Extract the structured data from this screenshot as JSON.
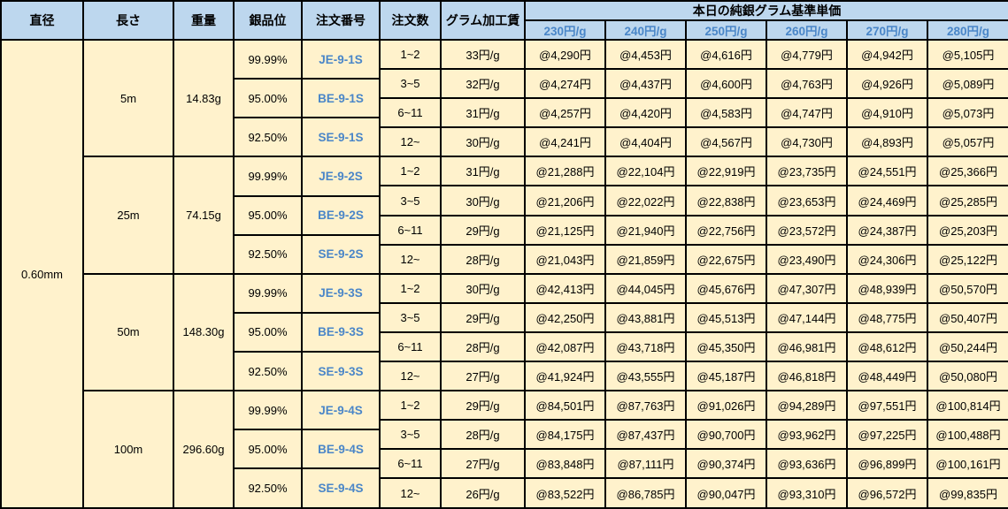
{
  "colors": {
    "header_bg": "#BDD7EE",
    "body_bg": "#FFF2CC",
    "accent_blue_text": "#4A86C8",
    "border": "#000000"
  },
  "table": {
    "headers": {
      "diameter": "直径",
      "length": "長さ",
      "weight": "重量",
      "purity": "銀品位",
      "order_number": "注文番号",
      "order_qty": "注文数",
      "gram_fee": "グラム加工賃",
      "price_group": "本日の純銀グラム基準単価",
      "price_columns": [
        "230円/g",
        "240円/g",
        "250円/g",
        "260円/g",
        "270円/g",
        "280円/g"
      ]
    },
    "diameter": "0.60mm",
    "blocks": [
      {
        "length": "5m",
        "weight": "14.83g",
        "purities": [
          {
            "purity": "99.99%",
            "order_number": "JE-9-1S"
          },
          {
            "purity": "95.00%",
            "order_number": "BE-9-1S"
          },
          {
            "purity": "92.50%",
            "order_number": "SE-9-1S"
          }
        ],
        "rows": [
          {
            "qty": "1~2",
            "fee": "33円/g",
            "prices": [
              "@4,290円",
              "@4,453円",
              "@4,616円",
              "@4,779円",
              "@4,942円",
              "@5,105円"
            ]
          },
          {
            "qty": "3~5",
            "fee": "32円/g",
            "prices": [
              "@4,274円",
              "@4,437円",
              "@4,600円",
              "@4,763円",
              "@4,926円",
              "@5,089円"
            ]
          },
          {
            "qty": "6~11",
            "fee": "31円/g",
            "prices": [
              "@4,257円",
              "@4,420円",
              "@4,583円",
              "@4,747円",
              "@4,910円",
              "@5,073円"
            ]
          },
          {
            "qty": "12~",
            "fee": "30円/g",
            "prices": [
              "@4,241円",
              "@4,404円",
              "@4,567円",
              "@4,730円",
              "@4,893円",
              "@5,057円"
            ]
          }
        ]
      },
      {
        "length": "25m",
        "weight": "74.15g",
        "purities": [
          {
            "purity": "99.99%",
            "order_number": "JE-9-2S"
          },
          {
            "purity": "95.00%",
            "order_number": "BE-9-2S"
          },
          {
            "purity": "92.50%",
            "order_number": "SE-9-2S"
          }
        ],
        "rows": [
          {
            "qty": "1~2",
            "fee": "31円/g",
            "prices": [
              "@21,288円",
              "@22,104円",
              "@22,919円",
              "@23,735円",
              "@24,551円",
              "@25,366円"
            ]
          },
          {
            "qty": "3~5",
            "fee": "30円/g",
            "prices": [
              "@21,206円",
              "@22,022円",
              "@22,838円",
              "@23,653円",
              "@24,469円",
              "@25,285円"
            ]
          },
          {
            "qty": "6~11",
            "fee": "29円/g",
            "prices": [
              "@21,125円",
              "@21,940円",
              "@22,756円",
              "@23,572円",
              "@24,387円",
              "@25,203円"
            ]
          },
          {
            "qty": "12~",
            "fee": "28円/g",
            "prices": [
              "@21,043円",
              "@21,859円",
              "@22,675円",
              "@23,490円",
              "@24,306円",
              "@25,122円"
            ]
          }
        ]
      },
      {
        "length": "50m",
        "weight": "148.30g",
        "purities": [
          {
            "purity": "99.99%",
            "order_number": "JE-9-3S"
          },
          {
            "purity": "95.00%",
            "order_number": "BE-9-3S"
          },
          {
            "purity": "92.50%",
            "order_number": "SE-9-3S"
          }
        ],
        "rows": [
          {
            "qty": "1~2",
            "fee": "30円/g",
            "prices": [
              "@42,413円",
              "@44,045円",
              "@45,676円",
              "@47,307円",
              "@48,939円",
              "@50,570円"
            ]
          },
          {
            "qty": "3~5",
            "fee": "29円/g",
            "prices": [
              "@42,250円",
              "@43,881円",
              "@45,513円",
              "@47,144円",
              "@48,775円",
              "@50,407円"
            ]
          },
          {
            "qty": "6~11",
            "fee": "28円/g",
            "prices": [
              "@42,087円",
              "@43,718円",
              "@45,350円",
              "@46,981円",
              "@48,612円",
              "@50,244円"
            ]
          },
          {
            "qty": "12~",
            "fee": "27円/g",
            "prices": [
              "@41,924円",
              "@43,555円",
              "@45,187円",
              "@46,818円",
              "@48,449円",
              "@50,080円"
            ]
          }
        ]
      },
      {
        "length": "100m",
        "weight": "296.60g",
        "purities": [
          {
            "purity": "99.99%",
            "order_number": "JE-9-4S"
          },
          {
            "purity": "95.00%",
            "order_number": "BE-9-4S"
          },
          {
            "purity": "92.50%",
            "order_number": "SE-9-4S"
          }
        ],
        "rows": [
          {
            "qty": "1~2",
            "fee": "29円/g",
            "prices": [
              "@84,501円",
              "@87,763円",
              "@91,026円",
              "@94,289円",
              "@97,551円",
              "@100,814円"
            ]
          },
          {
            "qty": "3~5",
            "fee": "28円/g",
            "prices": [
              "@84,175円",
              "@87,437円",
              "@90,700円",
              "@93,962円",
              "@97,225円",
              "@100,488円"
            ]
          },
          {
            "qty": "6~11",
            "fee": "27円/g",
            "prices": [
              "@83,848円",
              "@87,111円",
              "@90,374円",
              "@93,636円",
              "@96,899円",
              "@100,161円"
            ]
          },
          {
            "qty": "12~",
            "fee": "26円/g",
            "prices": [
              "@83,522円",
              "@86,785円",
              "@90,047円",
              "@93,310円",
              "@96,572円",
              "@99,835円"
            ]
          }
        ]
      }
    ]
  }
}
